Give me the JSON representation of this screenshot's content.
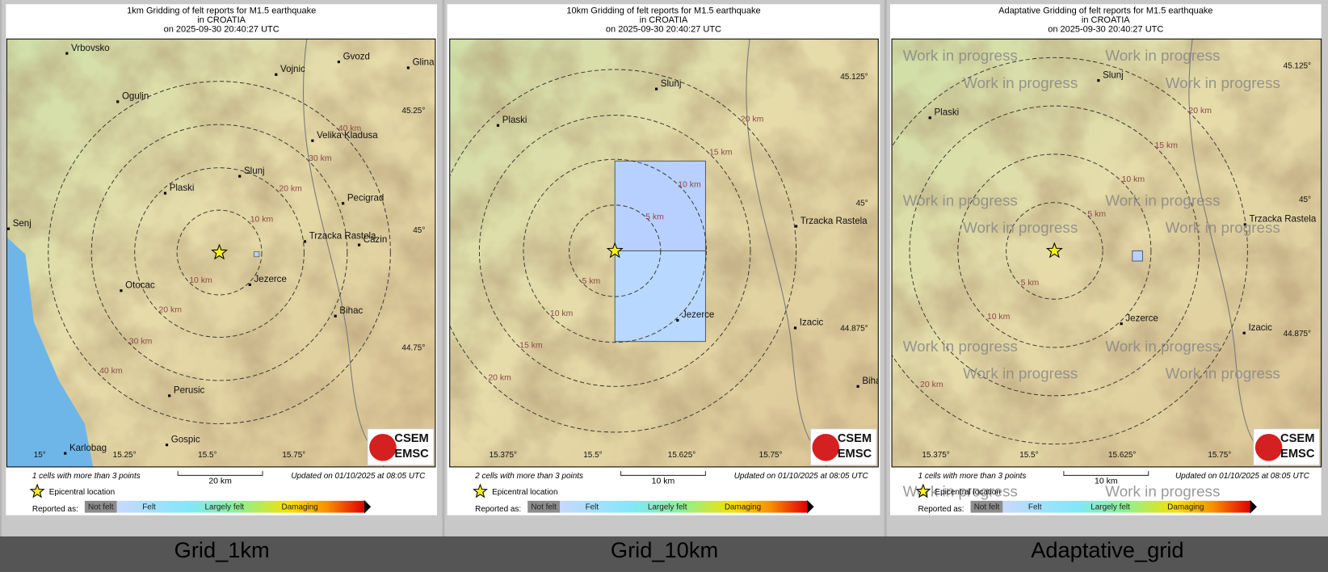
{
  "panels": [
    {
      "title": [
        "1km Gridding of felt reports for M1.5 earthquake",
        "in CROATIA",
        "on  2025-09-30 20:40:27 UTC"
      ],
      "cities": [
        "Vrbovsko",
        "Ogulin",
        "Vojnic",
        "Gvozd",
        "Glina",
        "Velika Kladusa",
        "Slunj",
        "Plaski",
        "Pecigrad",
        "Senj",
        "Trzacka Rastela",
        "Cazin",
        "Jezerce",
        "Otocac",
        "Bihac",
        "Perusic",
        "Gospic",
        "Karlobag"
      ],
      "coords": [
        "45.25°",
        "45°",
        "44.75°",
        "15°",
        "15.25°",
        "15.5°",
        "15.75°"
      ],
      "distances": [
        "10 km",
        "20 km",
        "30 km",
        "40 km",
        "10 km",
        "20 km",
        "30 km",
        "40 km"
      ],
      "cells_note": "1 cells with more than 3 points",
      "scale_label": "20 km",
      "updated": "Updated on 01/10/2025 at 08:05 UTC",
      "caption": "Grid_1km"
    },
    {
      "title": [
        "10km Gridding of felt reports for M1.5 earthquake",
        "in CROATIA",
        "on  2025-09-30 20:40:27 UTC"
      ],
      "cities": [
        "Slunj",
        "Plaski",
        "Trzacka Rastela",
        "Jezerce",
        "Izacic",
        "Biha"
      ],
      "coords": [
        "45.125°",
        "45°",
        "44.875°",
        "15.375°",
        "15.5°",
        "15.625°",
        "15.75°"
      ],
      "distances": [
        "20 km",
        "15 km",
        "10 km",
        "5 km",
        "5 km",
        "10 km",
        "15 km",
        "20 km"
      ],
      "cells_note": "2 cells with more than 3 points",
      "scale_label": "10 km",
      "updated": "Updated on 01/10/2025 at 08:05 UTC",
      "caption": "Grid_10km"
    },
    {
      "title": [
        "Adaptative Gridding of felt reports for M1.5 earthquake",
        "in CROATIA",
        "on  2025-09-30 20:40:27 UTC"
      ],
      "cities": [
        "Slunj",
        "Plaski",
        "Trzacka Rastela",
        "Jezerce",
        "Izacic"
      ],
      "coords": [
        "45.125°",
        "45°",
        "44.875°",
        "15.375°",
        "15.5°",
        "15.625°",
        "15.75°"
      ],
      "distances": [
        "20 km",
        "15 km",
        "10 km",
        "5 km",
        "5 km",
        "10 km",
        "20 km"
      ],
      "cells_note": "1 cells with more than 3 points",
      "scale_label": "10 km",
      "updated": "Updated on 01/10/2025 at 08:05 UTC",
      "caption": "Adaptative_grid",
      "watermark": "Work in progress"
    }
  ],
  "legend": {
    "epicentral": "Epicentral location",
    "reported_as": "Reported as:",
    "levels": [
      "Not felt",
      "Felt",
      "Largely felt",
      "Damaging"
    ]
  },
  "logo": [
    "CSEM",
    "EMSC"
  ]
}
